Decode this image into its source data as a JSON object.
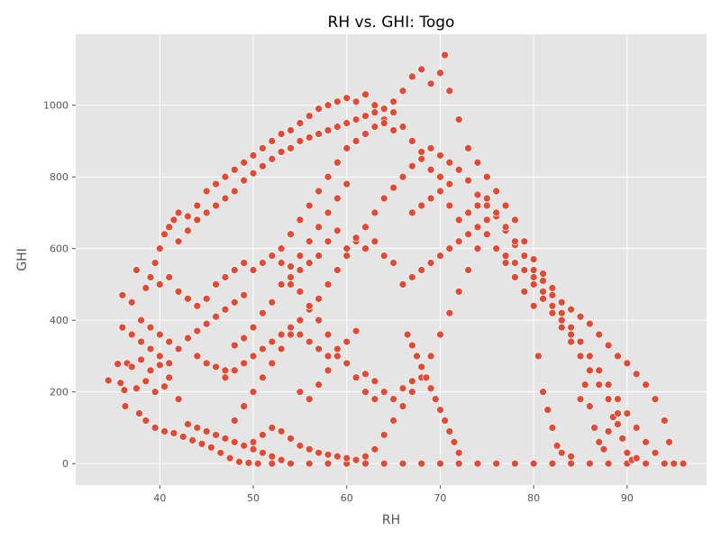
{
  "chart_data": {
    "type": "scatter",
    "title": "RH vs. GHI: Togo",
    "xlabel": "RH",
    "ylabel": "GHI",
    "xlim": [
      31,
      98.5
    ],
    "ylim": [
      -60,
      1198
    ],
    "xticks": [
      40,
      50,
      60,
      70,
      80,
      90
    ],
    "yticks": [
      0,
      200,
      400,
      600,
      800,
      1000
    ],
    "grid": true,
    "marker_color": "#E24A33",
    "marker_edge_color": "#ffffff",
    "background_color": "#E5E5E5",
    "grid_color": "#ffffff",
    "points": [
      [
        34.5,
        232
      ],
      [
        35.5,
        278
      ],
      [
        35.8,
        225
      ],
      [
        36.2,
        205
      ],
      [
        36.5,
        280
      ],
      [
        36.3,
        160
      ],
      [
        37.0,
        270
      ],
      [
        37.5,
        210
      ],
      [
        38.0,
        290
      ],
      [
        38.5,
        230
      ],
      [
        39.0,
        260
      ],
      [
        39.5,
        200
      ],
      [
        40.0,
        275
      ],
      [
        40.5,
        215
      ],
      [
        41.0,
        240
      ],
      [
        37.8,
        140
      ],
      [
        38.5,
        120
      ],
      [
        39.5,
        100
      ],
      [
        40.5,
        90
      ],
      [
        41.5,
        85
      ],
      [
        42.5,
        75
      ],
      [
        43.5,
        65
      ],
      [
        44.5,
        55
      ],
      [
        45.5,
        45
      ],
      [
        46.5,
        30
      ],
      [
        47.5,
        15
      ],
      [
        48.5,
        5
      ],
      [
        49.5,
        2
      ],
      [
        50.5,
        0
      ],
      [
        52,
        0
      ],
      [
        54,
        0
      ],
      [
        56,
        0
      ],
      [
        58,
        0
      ],
      [
        60,
        0
      ],
      [
        62,
        0
      ],
      [
        64,
        0
      ],
      [
        66,
        0
      ],
      [
        68,
        0
      ],
      [
        70,
        0
      ],
      [
        72,
        0
      ],
      [
        74,
        0
      ],
      [
        76,
        0
      ],
      [
        78,
        0
      ],
      [
        80,
        0
      ],
      [
        82,
        0
      ],
      [
        84,
        0
      ],
      [
        86,
        0
      ],
      [
        88,
        0
      ],
      [
        90,
        0
      ],
      [
        92,
        0
      ],
      [
        94,
        0
      ],
      [
        95,
        0
      ],
      [
        96,
        0
      ],
      [
        36.0,
        470
      ],
      [
        37.0,
        450
      ],
      [
        37.5,
        540
      ],
      [
        38.5,
        490
      ],
      [
        39.0,
        520
      ],
      [
        39.5,
        560
      ],
      [
        40.0,
        600
      ],
      [
        40.5,
        640
      ],
      [
        41.0,
        660
      ],
      [
        41.5,
        680
      ],
      [
        42.0,
        700
      ],
      [
        43.0,
        690
      ],
      [
        44.0,
        720
      ],
      [
        45.0,
        760
      ],
      [
        46.0,
        780
      ],
      [
        47.0,
        800
      ],
      [
        48.0,
        820
      ],
      [
        49.0,
        840
      ],
      [
        50.0,
        860
      ],
      [
        51.0,
        880
      ],
      [
        52.0,
        900
      ],
      [
        53.0,
        920
      ],
      [
        54.0,
        930
      ],
      [
        55.0,
        950
      ],
      [
        56.0,
        970
      ],
      [
        57.0,
        990
      ],
      [
        58.0,
        1000
      ],
      [
        59.0,
        1010
      ],
      [
        60.0,
        1020
      ],
      [
        61.0,
        1010
      ],
      [
        62.0,
        1030
      ],
      [
        63.0,
        1000
      ],
      [
        64.0,
        990
      ],
      [
        65.0,
        1010
      ],
      [
        66.0,
        1040
      ],
      [
        67.0,
        1080
      ],
      [
        68.0,
        1100
      ],
      [
        69.0,
        1060
      ],
      [
        70.0,
        1090
      ],
      [
        70.5,
        1140
      ],
      [
        71.0,
        1040
      ],
      [
        72.0,
        960
      ],
      [
        73.0,
        880
      ],
      [
        74.0,
        840
      ],
      [
        75.0,
        800
      ],
      [
        76.0,
        760
      ],
      [
        77.0,
        720
      ],
      [
        78.0,
        680
      ],
      [
        79.0,
        620
      ],
      [
        80.0,
        570
      ],
      [
        81.0,
        530
      ],
      [
        82.0,
        490
      ],
      [
        83.0,
        450
      ],
      [
        84.0,
        430
      ],
      [
        85.0,
        410
      ],
      [
        86.0,
        390
      ],
      [
        87.0,
        360
      ],
      [
        88.0,
        330
      ],
      [
        89.0,
        300
      ],
      [
        90.0,
        280
      ],
      [
        91.0,
        250
      ],
      [
        92.0,
        220
      ],
      [
        93.0,
        180
      ],
      [
        94.0,
        120
      ],
      [
        94.5,
        60
      ],
      [
        44.0,
        300
      ],
      [
        45.0,
        280
      ],
      [
        46.0,
        270
      ],
      [
        47.0,
        260
      ],
      [
        48.0,
        330
      ],
      [
        49.0,
        350
      ],
      [
        50.0,
        380
      ],
      [
        51.0,
        420
      ],
      [
        52.0,
        450
      ],
      [
        53.0,
        500
      ],
      [
        54.0,
        550
      ],
      [
        55.0,
        580
      ],
      [
        56.0,
        620
      ],
      [
        57.0,
        660
      ],
      [
        58.0,
        700
      ],
      [
        59.0,
        740
      ],
      [
        60.0,
        780
      ],
      [
        48.0,
        120
      ],
      [
        49.0,
        160
      ],
      [
        50.0,
        200
      ],
      [
        51.0,
        240
      ],
      [
        52.0,
        280
      ],
      [
        53.0,
        320
      ],
      [
        54.0,
        360
      ],
      [
        55.0,
        400
      ],
      [
        56.0,
        430
      ],
      [
        57.0,
        460
      ],
      [
        58.0,
        500
      ],
      [
        59.0,
        540
      ],
      [
        60.0,
        580
      ],
      [
        61.0,
        620
      ],
      [
        62.0,
        660
      ],
      [
        63.0,
        700
      ],
      [
        64.0,
        740
      ],
      [
        65.0,
        770
      ],
      [
        66.0,
        800
      ],
      [
        67.0,
        830
      ],
      [
        68.0,
        850
      ],
      [
        69.0,
        820
      ],
      [
        70.0,
        800
      ],
      [
        71.0,
        780
      ],
      [
        50.0,
        60
      ],
      [
        51.0,
        80
      ],
      [
        52.0,
        100
      ],
      [
        53.0,
        90
      ],
      [
        54.0,
        70
      ],
      [
        55.0,
        50
      ],
      [
        56.0,
        40
      ],
      [
        57.0,
        30
      ],
      [
        58.0,
        25
      ],
      [
        59.0,
        20
      ],
      [
        60.0,
        15
      ],
      [
        61.0,
        10
      ],
      [
        62.0,
        20
      ],
      [
        63.0,
        40
      ],
      [
        64.0,
        80
      ],
      [
        65.0,
        120
      ],
      [
        66.0,
        160
      ],
      [
        67.0,
        200
      ],
      [
        68.0,
        240
      ],
      [
        69.0,
        300
      ],
      [
        70.0,
        360
      ],
      [
        71.0,
        420
      ],
      [
        72.0,
        480
      ],
      [
        73.0,
        540
      ],
      [
        74.0,
        600
      ],
      [
        75.0,
        640
      ],
      [
        76.0,
        600
      ],
      [
        77.0,
        560
      ],
      [
        78.0,
        520
      ],
      [
        79.0,
        480
      ],
      [
        80.0,
        440
      ],
      [
        80.5,
        300
      ],
      [
        81.0,
        200
      ],
      [
        81.5,
        150
      ],
      [
        82.0,
        100
      ],
      [
        82.5,
        50
      ],
      [
        83.0,
        30
      ],
      [
        84.0,
        20
      ],
      [
        85.0,
        180
      ],
      [
        85.5,
        220
      ],
      [
        86.0,
        160
      ],
      [
        86.5,
        100
      ],
      [
        87.0,
        60
      ],
      [
        87.5,
        40
      ],
      [
        88.0,
        90
      ],
      [
        88.5,
        130
      ],
      [
        89.0,
        110
      ],
      [
        89.5,
        70
      ],
      [
        90.0,
        30
      ],
      [
        90.5,
        10
      ],
      [
        91.0,
        15
      ],
      [
        62.0,
        250
      ],
      [
        63.0,
        230
      ],
      [
        64.0,
        200
      ],
      [
        65.0,
        180
      ],
      [
        66.0,
        210
      ],
      [
        67.0,
        230
      ],
      [
        55.0,
        200
      ],
      [
        56.0,
        180
      ],
      [
        57.0,
        220
      ],
      [
        58.0,
        260
      ],
      [
        59.0,
        300
      ],
      [
        60.0,
        340
      ],
      [
        61.0,
        370
      ],
      [
        53.0,
        600
      ],
      [
        54.0,
        640
      ],
      [
        55.0,
        680
      ],
      [
        56.0,
        720
      ],
      [
        57.0,
        760
      ],
      [
        58.0,
        800
      ],
      [
        59.0,
        840
      ],
      [
        60.0,
        880
      ],
      [
        61.0,
        900
      ],
      [
        62.0,
        920
      ],
      [
        63.0,
        940
      ],
      [
        64.0,
        960
      ],
      [
        65.0,
        980
      ],
      [
        66.0,
        940
      ],
      [
        67.0,
        900
      ],
      [
        68.0,
        870
      ],
      [
        69.0,
        880
      ],
      [
        70.0,
        860
      ],
      [
        71.0,
        840
      ],
      [
        72.0,
        820
      ],
      [
        73.0,
        790
      ],
      [
        74.0,
        750
      ],
      [
        75.0,
        720
      ],
      [
        76.0,
        690
      ],
      [
        77.0,
        650
      ],
      [
        78.0,
        610
      ],
      [
        79.0,
        580
      ],
      [
        80.0,
        540
      ],
      [
        81.0,
        510
      ],
      [
        82.0,
        470
      ],
      [
        83.0,
        420
      ],
      [
        84.0,
        380
      ],
      [
        85.0,
        340
      ],
      [
        86.0,
        300
      ],
      [
        87.0,
        260
      ],
      [
        88.0,
        220
      ],
      [
        89.0,
        180
      ],
      [
        90.0,
        140
      ],
      [
        91.0,
        100
      ],
      [
        92.0,
        60
      ],
      [
        93.0,
        30
      ],
      [
        42.0,
        620
      ],
      [
        43.0,
        650
      ],
      [
        44.0,
        680
      ],
      [
        45.0,
        700
      ],
      [
        46.0,
        720
      ],
      [
        47.0,
        740
      ],
      [
        48.0,
        760
      ],
      [
        49.0,
        790
      ],
      [
        50.0,
        810
      ],
      [
        51.0,
        830
      ],
      [
        52.0,
        850
      ],
      [
        53.0,
        870
      ],
      [
        54.0,
        880
      ],
      [
        55.0,
        900
      ],
      [
        56.0,
        910
      ],
      [
        57.0,
        920
      ],
      [
        58.0,
        930
      ],
      [
        59.0,
        940
      ],
      [
        60.0,
        950
      ],
      [
        61.0,
        960
      ],
      [
        62.0,
        970
      ],
      [
        63.0,
        980
      ],
      [
        64.0,
        950
      ],
      [
        65.0,
        930
      ],
      [
        40.0,
        500
      ],
      [
        41.0,
        520
      ],
      [
        42.0,
        480
      ],
      [
        43.0,
        460
      ],
      [
        44.0,
        440
      ],
      [
        45.0,
        460
      ],
      [
        46.0,
        500
      ],
      [
        47.0,
        520
      ],
      [
        48.0,
        540
      ],
      [
        49.0,
        560
      ],
      [
        50.0,
        540
      ],
      [
        51.0,
        560
      ],
      [
        52.0,
        580
      ],
      [
        53.0,
        560
      ],
      [
        54.0,
        520
      ],
      [
        55.0,
        480
      ],
      [
        56.0,
        440
      ],
      [
        57.0,
        400
      ],
      [
        58.0,
        360
      ],
      [
        59.0,
        320
      ],
      [
        60.0,
        280
      ],
      [
        61.0,
        240
      ],
      [
        62.0,
        200
      ],
      [
        63.0,
        180
      ],
      [
        38.0,
        400
      ],
      [
        39.0,
        380
      ],
      [
        40.0,
        360
      ],
      [
        41.0,
        340
      ],
      [
        42.0,
        320
      ],
      [
        43.0,
        350
      ],
      [
        44.0,
        370
      ],
      [
        45.0,
        390
      ],
      [
        46.0,
        410
      ],
      [
        47.0,
        430
      ],
      [
        48.0,
        450
      ],
      [
        49.0,
        470
      ],
      [
        36.0,
        380
      ],
      [
        37.0,
        360
      ],
      [
        38.0,
        340
      ],
      [
        39.0,
        320
      ],
      [
        40.0,
        300
      ],
      [
        41.0,
        280
      ],
      [
        42.0,
        180
      ],
      [
        43.0,
        110
      ],
      [
        44.0,
        100
      ],
      [
        45.0,
        90
      ],
      [
        46.0,
        80
      ],
      [
        47.0,
        70
      ],
      [
        48.0,
        60
      ],
      [
        49.0,
        50
      ],
      [
        50.0,
        40
      ],
      [
        51.0,
        30
      ],
      [
        52.0,
        20
      ],
      [
        53.0,
        10
      ],
      [
        66.0,
        500
      ],
      [
        67.0,
        520
      ],
      [
        68.0,
        540
      ],
      [
        69.0,
        560
      ],
      [
        70.0,
        580
      ],
      [
        71.0,
        600
      ],
      [
        72.0,
        620
      ],
      [
        73.0,
        640
      ],
      [
        74.0,
        660
      ],
      [
        75.0,
        680
      ],
      [
        76.0,
        700
      ],
      [
        77.0,
        660
      ],
      [
        78.0,
        620
      ],
      [
        79.0,
        580
      ],
      [
        80.0,
        500
      ],
      [
        81.0,
        460
      ],
      [
        82.0,
        420
      ],
      [
        83.0,
        380
      ],
      [
        84.0,
        340
      ],
      [
        85.0,
        300
      ],
      [
        86.0,
        260
      ],
      [
        87.0,
        220
      ],
      [
        88.0,
        180
      ],
      [
        89.0,
        140
      ],
      [
        67.0,
        700
      ],
      [
        68.0,
        720
      ],
      [
        69.0,
        740
      ],
      [
        70.0,
        760
      ],
      [
        71.0,
        720
      ],
      [
        72.0,
        680
      ],
      [
        73.0,
        700
      ],
      [
        74.0,
        720
      ],
      [
        75.0,
        740
      ],
      [
        76.0,
        600
      ],
      [
        77.0,
        580
      ],
      [
        78.0,
        560
      ],
      [
        79.0,
        540
      ],
      [
        80.0,
        520
      ],
      [
        81.0,
        480
      ],
      [
        82.0,
        440
      ],
      [
        83.0,
        400
      ],
      [
        84.0,
        360
      ],
      [
        66.5,
        360
      ],
      [
        67.0,
        330
      ],
      [
        67.5,
        300
      ],
      [
        68.0,
        270
      ],
      [
        68.5,
        240
      ],
      [
        69.0,
        210
      ],
      [
        69.5,
        180
      ],
      [
        70.0,
        150
      ],
      [
        70.5,
        120
      ],
      [
        71.0,
        90
      ],
      [
        71.5,
        60
      ],
      [
        72.0,
        30
      ],
      [
        58.0,
        620
      ],
      [
        59.0,
        650
      ],
      [
        60.0,
        600
      ],
      [
        61.0,
        630
      ],
      [
        62.0,
        600
      ],
      [
        63.0,
        620
      ],
      [
        64.0,
        580
      ],
      [
        65.0,
        560
      ],
      [
        57.0,
        580
      ],
      [
        56.0,
        560
      ],
      [
        55.0,
        540
      ],
      [
        54.0,
        500
      ],
      [
        50.0,
        300
      ],
      [
        51.0,
        320
      ],
      [
        52.0,
        340
      ],
      [
        53.0,
        360
      ],
      [
        54.0,
        380
      ],
      [
        55.0,
        360
      ],
      [
        56.0,
        340
      ],
      [
        57.0,
        320
      ],
      [
        58.0,
        300
      ],
      [
        49.0,
        280
      ],
      [
        48.0,
        260
      ],
      [
        47.0,
        240
      ]
    ]
  }
}
